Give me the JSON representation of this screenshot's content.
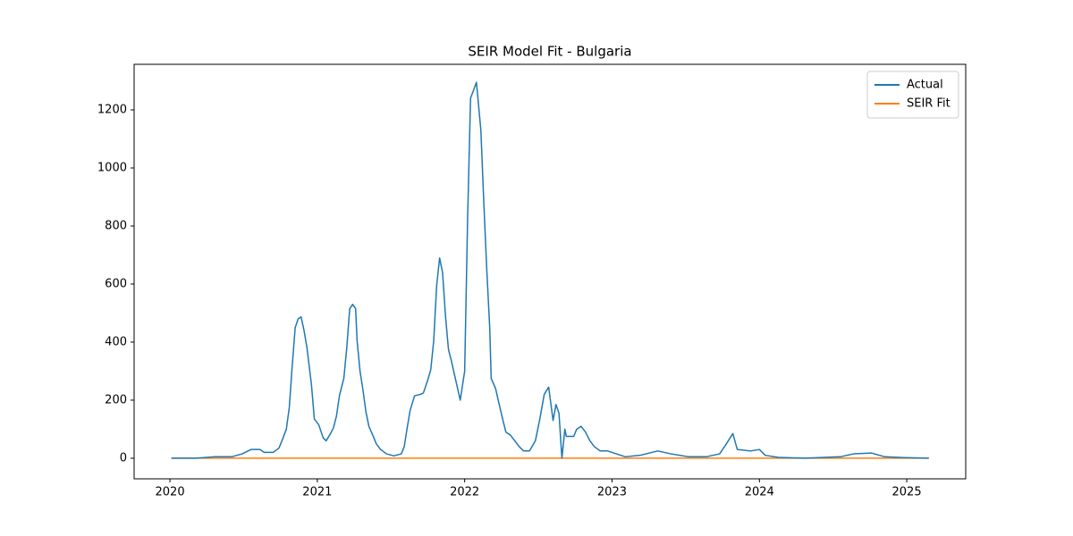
{
  "chart_data": {
    "type": "line",
    "title": "SEIR Model Fit - Bulgaria",
    "x": [
      2020.01,
      2020.18,
      2020.3,
      2020.42,
      2020.49,
      2020.55,
      2020.61,
      2020.64,
      2020.7,
      2020.74,
      2020.76,
      2020.79,
      2020.81,
      2020.83,
      2020.85,
      2020.87,
      2020.89,
      2020.91,
      2020.93,
      2020.96,
      2020.98,
      2021.01,
      2021.04,
      2021.06,
      2021.09,
      2021.11,
      2021.13,
      2021.15,
      2021.18,
      2021.2,
      2021.22,
      2021.24,
      2021.26,
      2021.27,
      2021.29,
      2021.31,
      2021.33,
      2021.35,
      2021.38,
      2021.4,
      2021.43,
      2021.47,
      2021.52,
      2021.57,
      2021.59,
      2021.61,
      2021.63,
      2021.66,
      2021.7,
      2021.72,
      2021.75,
      2021.77,
      2021.79,
      2021.81,
      2021.83,
      2021.85,
      2021.87,
      2021.89,
      2021.91,
      2021.93,
      2021.95,
      2021.97,
      2022.0,
      2022.02,
      2022.04,
      2022.08,
      2022.11,
      2022.13,
      2022.15,
      2022.17,
      2022.18,
      2022.21,
      2022.23,
      2022.26,
      2022.28,
      2022.31,
      2022.34,
      2022.37,
      2022.4,
      2022.44,
      2022.48,
      2022.51,
      2022.54,
      2022.57,
      2022.6,
      2022.62,
      2022.64,
      2022.66,
      2022.68,
      2022.69,
      2022.74,
      2022.76,
      2022.79,
      2022.82,
      2022.85,
      2022.88,
      2022.92,
      2022.97,
      2023.03,
      2023.09,
      2023.19,
      2023.31,
      2023.4,
      2023.52,
      2023.64,
      2023.73,
      2023.77,
      2023.82,
      2023.85,
      2023.94,
      2024.0,
      2024.04,
      2024.13,
      2024.31,
      2024.55,
      2024.64,
      2024.76,
      2024.85,
      2024.98,
      2025.15
    ],
    "series": [
      {
        "name": "Actual",
        "color": "#1f77b4",
        "values": [
          0,
          0,
          5,
          5,
          15,
          30,
          30,
          20,
          20,
          35,
          60,
          100,
          175,
          320,
          450,
          480,
          487,
          440,
          380,
          255,
          135,
          115,
          70,
          60,
          85,
          105,
          145,
          215,
          275,
          380,
          515,
          530,
          515,
          405,
          300,
          235,
          160,
          110,
          75,
          50,
          30,
          15,
          8,
          15,
          40,
          105,
          165,
          215,
          220,
          225,
          270,
          305,
          405,
          595,
          690,
          640,
          490,
          375,
          335,
          290,
          245,
          200,
          300,
          825,
          1240,
          1295,
          1130,
          880,
          650,
          450,
          275,
          240,
          195,
          130,
          90,
          80,
          60,
          40,
          25,
          25,
          60,
          135,
          220,
          245,
          130,
          185,
          155,
          0,
          100,
          75,
          75,
          100,
          110,
          90,
          60,
          40,
          25,
          25,
          15,
          5,
          10,
          25,
          15,
          5,
          5,
          15,
          45,
          85,
          30,
          25,
          30,
          10,
          3,
          0,
          5,
          15,
          18,
          5,
          2,
          0
        ]
      },
      {
        "name": "SEIR Fit",
        "color": "#ff7f0e",
        "values": [
          0,
          0,
          0,
          0,
          0,
          0,
          0,
          0,
          0,
          0,
          0,
          0,
          0,
          0,
          0,
          0,
          0,
          0,
          0,
          0,
          0,
          0,
          0,
          0,
          0,
          0,
          0,
          0,
          0,
          0,
          0,
          0,
          0,
          0,
          0,
          0,
          0,
          0,
          0,
          0,
          0,
          0,
          0,
          0,
          0,
          0,
          0,
          0,
          0,
          0,
          0,
          0,
          0,
          0,
          0,
          0,
          0,
          0,
          0,
          0,
          0,
          0,
          0,
          0,
          0,
          0,
          0,
          0,
          0,
          0,
          0,
          0,
          0,
          0,
          0,
          0,
          0,
          0,
          0,
          0,
          0,
          0,
          0,
          0,
          0,
          0,
          0,
          0,
          0,
          0,
          0,
          0,
          0,
          0,
          0,
          0,
          0,
          0,
          0,
          0,
          0,
          0,
          0,
          0,
          0,
          0,
          0,
          0,
          0,
          0,
          0,
          0,
          0,
          0,
          0,
          0,
          0,
          0,
          0,
          0
        ]
      }
    ],
    "xlim": [
      2019.757,
      2025.4
    ],
    "xticks": [
      2020,
      2021,
      2022,
      2023,
      2024,
      2025
    ],
    "ylim": [
      -71,
      1357
    ],
    "yticks": [
      0,
      200,
      400,
      600,
      800,
      1000,
      1200
    ],
    "legend": "upper right"
  }
}
